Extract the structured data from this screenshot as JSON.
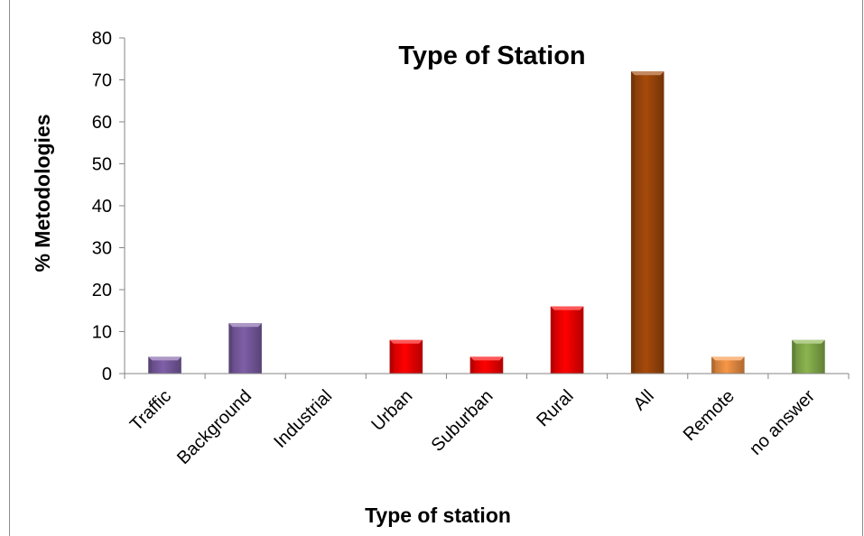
{
  "chart_data": {
    "type": "bar",
    "title": "Type of Station",
    "xlabel": "Type of station",
    "ylabel": "% Metodologies",
    "categories": [
      "Traffic",
      "Background",
      "Industrial",
      "Urban",
      "Suburban",
      "Rural",
      "All",
      "Remote",
      "no answer"
    ],
    "values": [
      4,
      12,
      0,
      8,
      4,
      16,
      72,
      4,
      8
    ],
    "bar_colors": [
      "#7f5fa8",
      "#7f5fa8",
      "#7f5fa8",
      "#ff0000",
      "#ff0000",
      "#ff0000",
      "#a64a0b",
      "#f79646",
      "#8bb54f"
    ],
    "ylim": [
      0,
      80
    ],
    "yticks": [
      0,
      10,
      20,
      30,
      40,
      50,
      60,
      70,
      80
    ],
    "grid": false,
    "legend": "none"
  }
}
